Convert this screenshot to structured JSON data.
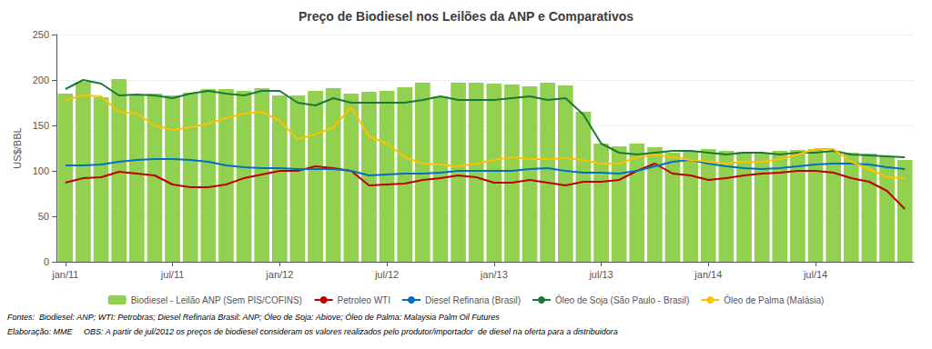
{
  "chart_data": {
    "type": "bar",
    "title": "Preço de Biodiesel nos Leilões da ANP e Comparativos",
    "y_label": "US$/BBL",
    "annotations": [
      "Fontes:  Biodiesel: ANP; WTI: Petrobras; Diesel Refinaria Brasil: ANP; Óleo de Soja: Abiove; Óleo de Palma: Malaysia Palm Oil Futures",
      "Elaboração: MME     OBS: A partir de jul/2012 os preços de biodiesel consideram os valores realizados pelo produtor/importador  de diesel na oferta para a distribuidora"
    ],
    "categories": [
      "jan/11",
      null,
      null,
      null,
      null,
      null,
      "jul/11",
      null,
      null,
      null,
      null,
      null,
      "jan/12",
      null,
      null,
      null,
      null,
      null,
      "jul/12",
      null,
      null,
      null,
      null,
      null,
      "jan/13",
      null,
      null,
      null,
      null,
      null,
      "jul/13",
      null,
      null,
      null,
      null,
      null,
      "jan/14",
      null,
      null,
      null,
      null,
      null,
      "jul/14",
      null,
      null,
      null,
      null,
      null
    ],
    "ylim": [
      0,
      250
    ],
    "yticks": [
      0,
      50,
      100,
      150,
      200,
      250
    ],
    "grid": true,
    "legend": "bottom",
    "series": [
      {
        "name": "Biodiesel - Leilão ANP (Sem PIS/COFINS)",
        "type": "bar",
        "color": "#92D050",
        "values": [
          185,
          198,
          181,
          201,
          184,
          185,
          183,
          186,
          190,
          190,
          188,
          191,
          183,
          183,
          188,
          191,
          185,
          187,
          188,
          192,
          197,
          182,
          197,
          197,
          196,
          195,
          193,
          197,
          194,
          165,
          130,
          127,
          130,
          126,
          120,
          122,
          124,
          122,
          121,
          119,
          122,
          123,
          124,
          122,
          120,
          119,
          116,
          112
        ]
      },
      {
        "name": "Petroleo WTI",
        "type": "line",
        "color": "#C00000",
        "values": [
          87,
          92,
          93,
          99,
          97,
          95,
          85,
          82,
          82,
          85,
          92,
          96,
          100,
          100,
          105,
          103,
          100,
          84,
          85,
          86,
          90,
          92,
          95,
          93,
          87,
          87,
          90,
          87,
          84,
          88,
          88,
          90,
          100,
          108,
          97,
          95,
          90,
          92,
          95,
          97,
          98,
          100,
          100,
          98,
          92,
          88,
          78,
          58
        ]
      },
      {
        "name": "Diesel Refinaria (Brasil)",
        "type": "line",
        "color": "#0070C0",
        "values": [
          106,
          106,
          107,
          110,
          112,
          113,
          113,
          112,
          110,
          106,
          104,
          103,
          103,
          102,
          102,
          102,
          100,
          95,
          96,
          97,
          97,
          98,
          100,
          100,
          100,
          100,
          102,
          103,
          100,
          98,
          98,
          97,
          100,
          105,
          110,
          112,
          108,
          105,
          103,
          102,
          103,
          105,
          107,
          108,
          108,
          107,
          104,
          102
        ]
      },
      {
        "name": "Óleo de Soja (São Paulo - Brasil)",
        "type": "line",
        "color": "#1B7837",
        "values": [
          190,
          200,
          196,
          183,
          184,
          183,
          180,
          185,
          188,
          185,
          183,
          188,
          188,
          175,
          172,
          180,
          175,
          175,
          175,
          175,
          178,
          182,
          178,
          178,
          178,
          180,
          182,
          178,
          180,
          162,
          130,
          120,
          118,
          120,
          122,
          122,
          120,
          118,
          120,
          120,
          118,
          120,
          120,
          122,
          118,
          117,
          116,
          115
        ]
      },
      {
        "name": "Óleo de Palma (Malásia)",
        "type": "line",
        "color": "#FFC000",
        "values": [
          178,
          183,
          182,
          165,
          163,
          150,
          145,
          148,
          152,
          158,
          163,
          165,
          155,
          135,
          140,
          148,
          170,
          138,
          130,
          115,
          108,
          107,
          105,
          108,
          112,
          115,
          113,
          113,
          114,
          112,
          108,
          108,
          115,
          118,
          115,
          112,
          110,
          108,
          110,
          110,
          113,
          118,
          124,
          124,
          110,
          102,
          93,
          92
        ]
      }
    ]
  }
}
